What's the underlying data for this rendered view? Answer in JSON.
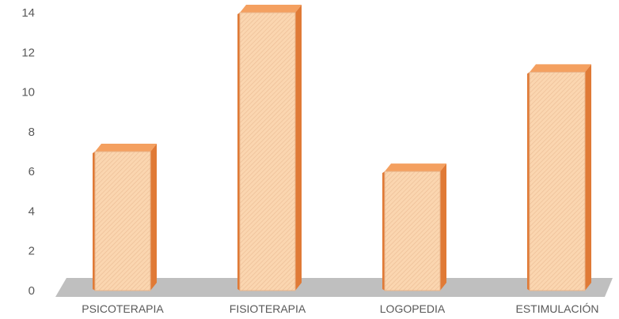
{
  "chart_data": {
    "type": "bar",
    "title": "",
    "xlabel": "",
    "ylabel": "",
    "categories": [
      "PSICOTERAPIA",
      "FISIOTERAPIA",
      "LOGOPEDIA",
      "ESTIMULACIÓN"
    ],
    "values": [
      7,
      14,
      6,
      11
    ],
    "ylim": [
      0,
      14
    ],
    "yticks": [
      "0",
      "2",
      "4",
      "6",
      "8",
      "10",
      "12",
      "14"
    ],
    "grid": false,
    "legend": "none",
    "style": "3d-column",
    "colors": {
      "bar_front": "#fbd6b0",
      "bar_hatch": "#e8b48a",
      "bar_top": "#f4a060",
      "bar_side": "#e07a36",
      "floor": "#bfbfbf",
      "text": "#595959"
    }
  }
}
